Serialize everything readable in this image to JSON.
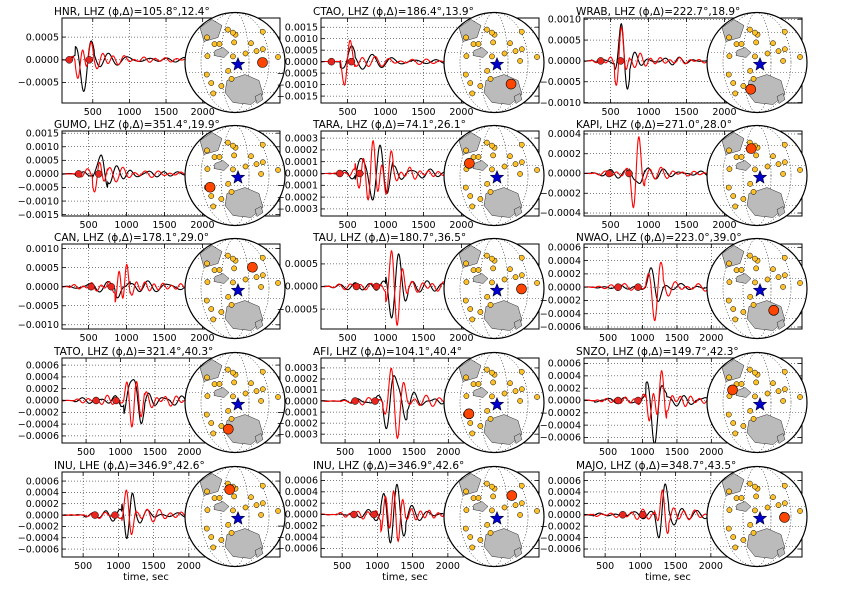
{
  "figure": {
    "xlabel": "time, sec",
    "colors": {
      "observed": "#000000",
      "synthetic": "#ff0000",
      "station": "#ffc125",
      "event": "#0000cd",
      "current": "#ff4500",
      "land": "#bbbbbb"
    }
  },
  "chart_data": [
    {
      "type": "line",
      "title": "HNR, LHZ ($\\phi,\\Delta$)=105.8$^\\circ$,12.4$^\\circ$",
      "xlim": [
        80,
        2100
      ],
      "xticks": [
        500,
        1000,
        1500,
        2000
      ],
      "ylim": [
        -0.00095,
        0.00092
      ],
      "yticks": [
        -0.0005,
        0.0,
        0.0005
      ],
      "yticklabels": [
        "−0.0005",
        "0.0000",
        "0.0005"
      ],
      "window": [
        260,
        520
      ],
      "arrival": 0.05
    },
    {
      "type": "line",
      "title": "CTAO, LHZ ($\\phi,\\Delta$)=186.4$^\\circ$,13.9$^\\circ$",
      "xlim": [
        150,
        2100
      ],
      "xticks": [
        500,
        1000,
        1500,
        2000
      ],
      "ylim": [
        -0.0018,
        0.0019
      ],
      "yticks": [
        -0.0015,
        -0.001,
        -0.0005,
        0.0,
        0.0005,
        0.001,
        0.0015
      ],
      "yticklabels": [
        "−0.0015",
        "−0.0010",
        "−0.0005",
        "0.0000",
        "0.0005",
        "0.0010",
        "0.0015"
      ],
      "window": [
        400,
        600
      ],
      "arrival": 0.13
    },
    {
      "type": "line",
      "title": "WRAB, LHZ ($\\phi,\\Delta$)=222.7$^\\circ$,18.9$^\\circ$",
      "xlim": [
        150,
        2100
      ],
      "xticks": [
        500,
        1000,
        1500,
        2000
      ],
      "ylim": [
        -0.00101,
        0.00103
      ],
      "yticks": [
        -0.001,
        -0.0005,
        0.0,
        0.0005,
        0.001
      ],
      "yticklabels": [
        "−0.0010",
        "−0.0005",
        "0.0000",
        "0.0005",
        "0.0010"
      ],
      "window": [
        550,
        750
      ],
      "arrival": 0.05
    },
    {
      "type": "line",
      "title": "GUMO, LHZ ($\\phi,\\Delta$)=351.4$^\\circ$,19.9$^\\circ$",
      "xlim": [
        150,
        2100
      ],
      "xticks": [
        500,
        1000,
        1500,
        2000
      ],
      "ylim": [
        -0.00155,
        0.00158
      ],
      "yticks": [
        -0.0015,
        -0.001,
        -0.0005,
        0.0,
        0.0005,
        0.001,
        0.0015
      ],
      "yticklabels": [
        "−0.0015",
        "−0.0010",
        "−0.0005",
        "0.0000",
        "0.0005",
        "0.0010",
        "0.0015"
      ],
      "window": [
        550,
        750
      ],
      "arrival": 0.09
    },
    {
      "type": "line",
      "title": "TARA, LHZ ($\\phi,\\Delta$)=74.1$^\\circ$,26.1$^\\circ$",
      "xlim": [
        150,
        2100
      ],
      "xticks": [
        500,
        1000,
        1500,
        2000
      ],
      "ylim": [
        -0.00036,
        0.00036
      ],
      "yticks": [
        -0.0003,
        -0.0002,
        -0.0001,
        0.0,
        0.0001,
        0.0002,
        0.0003
      ],
      "yticklabels": [
        "−0.0003",
        "−0.0002",
        "−0.0001",
        "0.0000",
        "0.0001",
        "0.0002",
        "0.0003"
      ],
      "window": [
        600,
        1100
      ],
      "arrival": 0.13
    },
    {
      "type": "line",
      "title": "KAPI, LHZ ($\\phi,\\Delta$)=271.0$^\\circ$,28.0$^\\circ$",
      "xlim": [
        150,
        2100
      ],
      "xticks": [
        500,
        1000,
        1500,
        2000
      ],
      "ylim": [
        -0.00043,
        0.00043
      ],
      "yticks": [
        -0.0004,
        -0.0002,
        0.0,
        0.0002,
        0.0004
      ],
      "yticklabels": [
        "−0.0004",
        "−0.0002",
        "0.0000",
        "0.0002",
        "0.0004"
      ],
      "window": [
        750,
        950
      ],
      "arrival": 0.05
    },
    {
      "type": "line",
      "title": "CAN, LHZ ($\\phi,\\Delta$)=178.1$^\\circ$,29.0$^\\circ$",
      "xlim": [
        150,
        2100
      ],
      "xticks": [
        500,
        1000,
        1500,
        2000
      ],
      "ylim": [
        -0.00111,
        0.00112
      ],
      "yticks": [
        -0.001,
        -0.0005,
        0.0,
        0.0005,
        0.001
      ],
      "yticklabels": [
        "−0.0010",
        "−0.0005",
        "0.0000",
        "0.0005",
        "0.0010"
      ],
      "window": [
        850,
        1050
      ],
      "arrival": 0.05
    },
    {
      "type": "line",
      "title": "TAU, LHZ ($\\phi,\\Delta$)=180.7$^\\circ$,36.5$^\\circ$",
      "xlim": [
        150,
        2100
      ],
      "xticks": [
        500,
        1000,
        1500,
        2000
      ],
      "ylim": [
        -0.00094,
        0.00094
      ],
      "yticks": [
        -0.0005,
        0.0,
        0.0005
      ],
      "yticklabels": [
        "−0.0005",
        "0.0000",
        "0.0005"
      ],
      "window": [
        1000,
        1300
      ],
      "arrival": 0.05
    },
    {
      "type": "line",
      "title": "NWAO, LHZ ($\\phi,\\Delta$)=223.0$^\\circ$,39.0$^\\circ$",
      "xlim": [
        150,
        2300
      ],
      "xticks": [
        500,
        1000,
        1500,
        2000
      ],
      "ylim": [
        -0.00063,
        0.00065
      ],
      "yticks": [
        -0.0006,
        -0.0004,
        -0.0002,
        0.0,
        0.0002,
        0.0004,
        0.0006
      ],
      "yticklabels": [
        "−0.0006",
        "−0.0004",
        "−0.0002",
        "0.0000",
        "0.0002",
        "0.0004",
        "0.0006"
      ],
      "window": [
        1050,
        1300
      ],
      "arrival": 0.07
    },
    {
      "type": "line",
      "title": "TATO, LHZ ($\\phi,\\Delta$)=321.4$^\\circ$,40.3$^\\circ$",
      "xlim": [
        150,
        2300
      ],
      "xticks": [
        500,
        1000,
        1500,
        2000
      ],
      "ylim": [
        -0.00072,
        0.00072
      ],
      "yticks": [
        -0.0006,
        -0.0004,
        -0.0002,
        0.0,
        0.0002,
        0.0004,
        0.0006
      ],
      "yticklabels": [
        "−0.0006",
        "−0.0004",
        "−0.0002",
        "0.0000",
        "0.0002",
        "0.0004",
        "0.0006"
      ],
      "window": [
        1050,
        1350
      ],
      "arrival": 0.08
    },
    {
      "type": "line",
      "title": "AFI, LHZ ($\\phi,\\Delta$)=104.1$^\\circ$,40.4$^\\circ$",
      "xlim": [
        150,
        2300
      ],
      "xticks": [
        500,
        1000,
        1500,
        2000
      ],
      "ylim": [
        -0.00038,
        0.00039
      ],
      "yticks": [
        -0.0003,
        -0.0002,
        -0.0001,
        0.0,
        0.0001,
        0.0002,
        0.0003
      ],
      "yticklabels": [
        "−0.0003",
        "−0.0002",
        "−0.0001",
        "0.0000",
        "0.0001",
        "0.0002",
        "0.0003"
      ],
      "window": [
        1050,
        1400
      ],
      "arrival": 0.13
    },
    {
      "type": "line",
      "title": "SNZO, LHZ ($\\phi,\\Delta$)=149.7$^\\circ$,42.3$^\\circ$",
      "xlim": [
        150,
        2300
      ],
      "xticks": [
        500,
        1000,
        1500,
        2000
      ],
      "ylim": [
        -0.00069,
        0.00069
      ],
      "yticks": [
        -0.0006,
        -0.0004,
        -0.0002,
        0.0,
        0.0002,
        0.0004,
        0.0006
      ],
      "yticklabels": [
        "−0.0006",
        "−0.0004",
        "−0.0002",
        "0.0000",
        "0.0002",
        "0.0004",
        "0.0006"
      ],
      "window": [
        1050,
        1350
      ],
      "arrival": 0.07
    },
    {
      "type": "line",
      "title": "INU, LHE ($\\phi,\\Delta$)=346.9$^\\circ$,42.6$^\\circ$",
      "xlim": [
        200,
        2300
      ],
      "xticks": [
        500,
        1000,
        1500,
        2000
      ],
      "ylim": [
        -0.00074,
        0.00076
      ],
      "yticks": [
        -0.0006,
        -0.0004,
        -0.0002,
        0.0,
        0.0002,
        0.0004,
        0.0006
      ],
      "yticklabels": [
        "−0.0006",
        "−0.0004",
        "−0.0002",
        "0.0000",
        "0.0002",
        "0.0004",
        "0.0006"
      ],
      "window": [
        1050,
        1250
      ],
      "arrival": 0.15,
      "clip": true
    },
    {
      "type": "line",
      "title": "INU, LHZ ($\\phi,\\Delta$)=346.9$^\\circ$,42.6$^\\circ$",
      "xlim": [
        200,
        2300
      ],
      "xticks": [
        500,
        1000,
        1500,
        2000
      ],
      "ylim": [
        -0.00075,
        0.00075
      ],
      "yticks": [
        -0.0006,
        -0.0004,
        -0.0002,
        0.0,
        0.0002,
        0.0004,
        0.0006
      ],
      "yticklabels": [
        "−0.0006",
        "−0.0004",
        "−0.0002",
        "0.0000",
        "0.0002",
        "0.0004",
        "0.0006"
      ],
      "window": [
        1050,
        1400
      ],
      "arrival": 0.1
    },
    {
      "type": "line",
      "title": "MAJO, LHZ ($\\phi,\\Delta$)=348.7$^\\circ$,43.5$^\\circ$",
      "xlim": [
        200,
        2300
      ],
      "xticks": [
        500,
        1000,
        1500,
        2000
      ],
      "ylim": [
        -0.00074,
        0.00075
      ],
      "yticks": [
        -0.0006,
        -0.0004,
        -0.0002,
        0.0,
        0.0002,
        0.0004,
        0.0006
      ],
      "yticklabels": [
        "−0.0006",
        "−0.0004",
        "−0.0002",
        "0.0000",
        "0.0002",
        "0.0004",
        "0.0006"
      ],
      "window": [
        1200,
        1400
      ],
      "arrival": 0.06
    }
  ]
}
